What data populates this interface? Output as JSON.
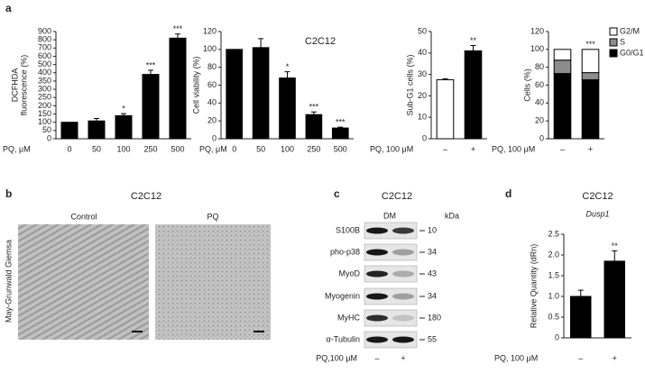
{
  "panel_labels": [
    "a",
    "b",
    "c",
    "d"
  ],
  "panel_a_title": "C2C12",
  "chart_data": [
    {
      "type": "bar",
      "ylabel": [
        "DCFHDA",
        "fluorescence (%)"
      ],
      "xlabel": "PQ, μM",
      "categories": [
        "0",
        "50",
        "100",
        "250",
        "500"
      ],
      "series": [
        {
          "color": "#000000",
          "values": [
            100,
            108,
            140,
            390,
            820
          ],
          "errors": [
            0,
            15,
            12,
            40,
            50
          ],
          "significance": [
            null,
            null,
            "*",
            "***",
            "***"
          ]
        }
      ],
      "ylim": [
        0,
        900
      ],
      "yticks": [
        0,
        50,
        100,
        150,
        200,
        250,
        300,
        350,
        400,
        500,
        600,
        700,
        800,
        900
      ],
      "y_scale": "segmented"
    },
    {
      "type": "bar",
      "ylabel": [
        "Cell viability (%)"
      ],
      "xlabel": "PQ, μM",
      "categories": [
        "0",
        "50",
        "100",
        "250",
        "500"
      ],
      "series": [
        {
          "color": "#000000",
          "values": [
            100,
            102,
            68,
            27,
            12
          ],
          "errors": [
            0,
            10,
            7,
            3,
            1
          ],
          "significance": [
            null,
            null,
            "*",
            "***",
            "***"
          ]
        }
      ],
      "ylim": [
        0,
        120
      ],
      "yticks": [
        0,
        20,
        40,
        60,
        80,
        100,
        120
      ]
    },
    {
      "type": "bar",
      "ylabel": [
        "Sub-G1 cells (%)"
      ],
      "xlabel": "PQ, 100 μM",
      "categories": [
        "–",
        "+"
      ],
      "series": [
        {
          "colors": [
            "#ffffff",
            "#000000"
          ],
          "values": [
            27.5,
            41
          ],
          "errors": [
            0.5,
            2.5
          ],
          "significance": [
            null,
            "**"
          ]
        }
      ],
      "ylim": [
        0,
        50
      ],
      "yticks": [
        0,
        10,
        20,
        30,
        40,
        50
      ]
    },
    {
      "type": "stacked_bar",
      "ylabel": [
        "Cells (%)"
      ],
      "xlabel": "PQ, 100 μM",
      "categories": [
        "–",
        "+"
      ],
      "series": [
        {
          "name": "G0/G1",
          "color": "#000000",
          "values": [
            73,
            66
          ],
          "significance": [
            null,
            "**"
          ]
        },
        {
          "name": "S",
          "color": "#8c8c8c",
          "values": [
            15,
            8
          ]
        },
        {
          "name": "G2/M",
          "color": "#ffffff",
          "values": [
            12,
            26
          ],
          "significance": [
            null,
            "***"
          ]
        }
      ],
      "ylim": [
        0,
        120
      ],
      "yticks": [
        0,
        20,
        40,
        60,
        80,
        100,
        120
      ],
      "legend": "right"
    },
    {
      "type": "bar",
      "title": "C2C12",
      "subtitle": "Dusp1",
      "ylabel": [
        "Relative Quantity (dRn)"
      ],
      "xlabel": "PQ, 100 μM",
      "categories": [
        "–",
        "+"
      ],
      "series": [
        {
          "color": "#000000",
          "values": [
            1.0,
            1.85
          ],
          "errors": [
            0.15,
            0.25
          ],
          "significance": [
            null,
            "**"
          ]
        }
      ],
      "ylim": [
        0,
        2.5
      ],
      "yticks": [
        0,
        0.5,
        {
          "value": 1,
          "label": "1.0"
        },
        1.5,
        {
          "value": 2,
          "label": "2.0"
        },
        2.5
      ]
    }
  ],
  "panel_b": {
    "title": "C2C12",
    "stain": "May-Grunwald Giemsa",
    "images": [
      "Control",
      "PQ"
    ]
  },
  "panel_c": {
    "title": "C2C12",
    "condition": "DM",
    "unit": "kDa",
    "proteins": [
      {
        "name": "S100B",
        "kda": 10
      },
      {
        "name": "pho-p38",
        "kda": 34
      },
      {
        "name": "MyoD",
        "kda": 43
      },
      {
        "name": "Myogenin",
        "kda": 34
      },
      {
        "name": "MyHC",
        "kda": 180
      },
      {
        "name": "α-Tubulin",
        "kda": 55
      }
    ],
    "xlabel": "PQ,100 μM",
    "categories": [
      "–",
      "+"
    ]
  }
}
